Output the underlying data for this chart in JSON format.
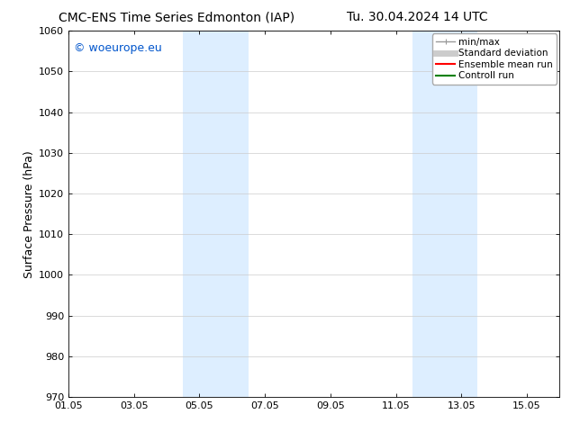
{
  "title_left": "CMC-ENS Time Series Edmonton (IAP)",
  "title_right": "Tu. 30.04.2024 14 UTC",
  "ylabel": "Surface Pressure (hPa)",
  "ylim": [
    970,
    1060
  ],
  "yticks": [
    970,
    980,
    990,
    1000,
    1010,
    1020,
    1030,
    1040,
    1050,
    1060
  ],
  "xtick_labels": [
    "01.05",
    "03.05",
    "05.05",
    "07.05",
    "09.05",
    "11.05",
    "13.05",
    "15.05"
  ],
  "xtick_positions": [
    0,
    2,
    4,
    6,
    8,
    10,
    12,
    14
  ],
  "xlim": [
    0,
    15
  ],
  "shaded_bands": [
    {
      "x_start": 3.5,
      "x_end": 4.5,
      "color": "#ddeeff"
    },
    {
      "x_start": 4.5,
      "x_end": 5.5,
      "color": "#ddeeff"
    },
    {
      "x_start": 10.5,
      "x_end": 11.5,
      "color": "#ddeeff"
    },
    {
      "x_start": 11.5,
      "x_end": 12.5,
      "color": "#ddeeff"
    }
  ],
  "watermark_text": "© woeurope.eu",
  "watermark_color": "#0055cc",
  "legend_entries": [
    {
      "label": "min/max",
      "color": "#999999",
      "lw": 1.0
    },
    {
      "label": "Standard deviation",
      "color": "#cccccc",
      "lw": 5
    },
    {
      "label": "Ensemble mean run",
      "color": "#ff0000",
      "lw": 1.5
    },
    {
      "label": "Controll run",
      "color": "#008000",
      "lw": 1.5
    }
  ],
  "bg_color": "#ffffff",
  "grid_color": "#cccccc",
  "title_fontsize": 10,
  "ylabel_fontsize": 9,
  "tick_fontsize": 8,
  "legend_fontsize": 7.5,
  "watermark_fontsize": 9
}
